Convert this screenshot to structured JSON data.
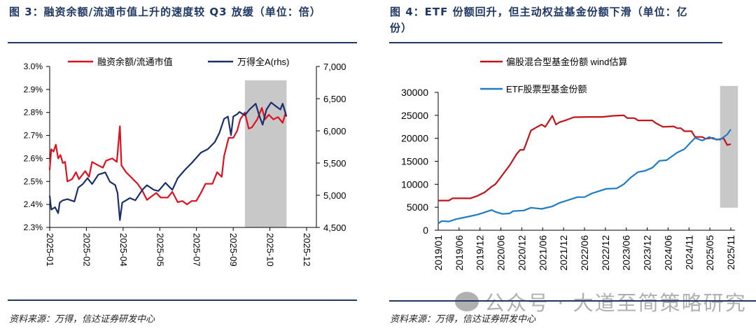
{
  "left": {
    "title": "图 3：融资余额/流通市值上升的速度较 Q3 放缓（单位：倍）",
    "source": "资料来源：万得，信达证券研发中心"
  },
  "right": {
    "title_line1": "图 4：ETF 份额回升，但主动权益基金份额下滑（单位：亿",
    "title_line2": "份）",
    "source": "资料来源：万得，信达证券研发中心"
  },
  "watermark": "公众号 · 大道至简策略研究",
  "chart_data": [
    {
      "type": "line",
      "title": "",
      "xlabel": "",
      "ylabel": "",
      "grid": false,
      "legend": "top",
      "x_ticks": [
        "2025-01",
        "2025-02",
        "2025-04",
        "2025-05",
        "2025-07",
        "2025-09",
        "2025-10",
        "2025-12"
      ],
      "x_range": [
        "2025-01-02",
        "2025-12-01"
      ],
      "y_ticks": [
        "3.0%",
        "2.9%",
        "2.8%",
        "2.7%",
        "2.6%",
        "2.5%",
        "2.4%",
        "2.3%"
      ],
      "ylim": [
        2.3,
        3.0
      ],
      "y2_ticks": [
        "7,000",
        "6,500",
        "6,000",
        "5,500",
        "5,000",
        "4,500"
      ],
      "y2lim": [
        4500,
        7000
      ],
      "shaded": {
        "x": [
          "2025-09-12",
          "2025-11-05"
        ],
        "y_top": 2.94,
        "color": "#c8c8c8"
      },
      "series": [
        {
          "name": "融资余额/流通市值",
          "axis": "left",
          "color": "#e0101e",
          "points": [
            [
              "2025-01-02",
              2.55
            ],
            [
              "2025-01-04",
              2.64
            ],
            [
              "2025-01-07",
              2.63
            ],
            [
              "2025-01-10",
              2.66
            ],
            [
              "2025-01-13",
              2.6
            ],
            [
              "2025-01-16",
              2.615
            ],
            [
              "2025-01-19",
              2.58
            ],
            [
              "2025-01-22",
              2.585
            ],
            [
              "2025-01-25",
              2.5
            ],
            [
              "2025-01-31",
              2.51
            ],
            [
              "2025-02-05",
              2.54
            ],
            [
              "2025-02-09",
              2.51
            ],
            [
              "2025-02-17",
              2.545
            ],
            [
              "2025-02-22",
              2.52
            ],
            [
              "2025-02-26",
              2.585
            ],
            [
              "2025-03-06",
              2.57
            ],
            [
              "2025-03-12",
              2.56
            ],
            [
              "2025-03-16",
              2.59
            ],
            [
              "2025-03-24",
              2.6
            ],
            [
              "2025-03-30",
              2.585
            ],
            [
              "2025-04-03",
              2.74
            ],
            [
              "2025-04-05",
              2.57
            ],
            [
              "2025-04-11",
              2.54
            ],
            [
              "2025-04-20",
              2.51
            ],
            [
              "2025-04-26",
              2.49
            ],
            [
              "2025-05-02",
              2.46
            ],
            [
              "2025-05-08",
              2.42
            ],
            [
              "2025-05-14",
              2.435
            ],
            [
              "2025-05-20",
              2.45
            ],
            [
              "2025-05-26",
              2.43
            ],
            [
              "2025-06-04",
              2.43
            ],
            [
              "2025-06-10",
              2.455
            ],
            [
              "2025-06-17",
              2.41
            ],
            [
              "2025-06-23",
              2.415
            ],
            [
              "2025-06-29",
              2.4
            ],
            [
              "2025-07-05",
              2.415
            ],
            [
              "2025-07-11",
              2.415
            ],
            [
              "2025-07-17",
              2.45
            ],
            [
              "2025-07-23",
              2.49
            ],
            [
              "2025-08-01",
              2.49
            ],
            [
              "2025-08-07",
              2.54
            ],
            [
              "2025-08-13",
              2.52
            ],
            [
              "2025-08-16",
              2.61
            ],
            [
              "2025-08-22",
              2.69
            ],
            [
              "2025-08-28",
              2.69
            ],
            [
              "2025-09-02",
              2.72
            ],
            [
              "2025-09-06",
              2.77
            ],
            [
              "2025-09-12",
              2.8
            ],
            [
              "2025-09-17",
              2.73
            ],
            [
              "2025-09-21",
              2.735
            ],
            [
              "2025-09-28",
              2.77
            ],
            [
              "2025-10-04",
              2.82
            ],
            [
              "2025-10-08",
              2.77
            ],
            [
              "2025-10-13",
              2.79
            ],
            [
              "2025-10-19",
              2.77
            ],
            [
              "2025-10-25",
              2.78
            ],
            [
              "2025-10-31",
              2.755
            ],
            [
              "2025-11-04",
              2.8
            ]
          ]
        },
        {
          "name": "万得全A(rhs)",
          "axis": "right",
          "color": "#1b2f6b",
          "points": [
            [
              "2025-01-02",
              4993
            ],
            [
              "2025-01-04",
              4777
            ],
            [
              "2025-01-09",
              4813
            ],
            [
              "2025-01-13",
              4722
            ],
            [
              "2025-01-15",
              4885
            ],
            [
              "2025-01-19",
              4921
            ],
            [
              "2025-01-25",
              4939
            ],
            [
              "2025-02-03",
              4903
            ],
            [
              "2025-02-08",
              5120
            ],
            [
              "2025-02-14",
              5174
            ],
            [
              "2025-02-20",
              5265
            ],
            [
              "2025-02-26",
              5174
            ],
            [
              "2025-03-06",
              5319
            ],
            [
              "2025-03-15",
              5355
            ],
            [
              "2025-03-21",
              5210
            ],
            [
              "2025-03-28",
              5156
            ],
            [
              "2025-03-31",
              5030
            ],
            [
              "2025-04-03",
              4614
            ],
            [
              "2025-04-06",
              4885
            ],
            [
              "2025-04-16",
              4957
            ],
            [
              "2025-04-23",
              4921
            ],
            [
              "2025-05-02",
              5084
            ],
            [
              "2025-05-08",
              5156
            ],
            [
              "2025-05-17",
              5084
            ],
            [
              "2025-05-23",
              5066
            ],
            [
              "2025-06-01",
              5192
            ],
            [
              "2025-06-10",
              5084
            ],
            [
              "2025-06-17",
              5265
            ],
            [
              "2025-06-26",
              5391
            ],
            [
              "2025-07-05",
              5500
            ],
            [
              "2025-07-17",
              5662
            ],
            [
              "2025-07-26",
              5716
            ],
            [
              "2025-08-04",
              5825
            ],
            [
              "2025-08-10",
              5970
            ],
            [
              "2025-08-16",
              6186
            ],
            [
              "2025-08-21",
              6223
            ],
            [
              "2025-08-25",
              5933
            ],
            [
              "2025-08-28",
              6223
            ],
            [
              "2025-09-02",
              6259
            ],
            [
              "2025-09-05",
              6295
            ],
            [
              "2025-09-12",
              6241
            ],
            [
              "2025-09-18",
              6331
            ],
            [
              "2025-09-26",
              6422
            ],
            [
              "2025-10-01",
              6223
            ],
            [
              "2025-10-05",
              6096
            ],
            [
              "2025-10-10",
              6331
            ],
            [
              "2025-10-16",
              6440
            ],
            [
              "2025-10-22",
              6385
            ],
            [
              "2025-10-28",
              6331
            ],
            [
              "2025-10-31",
              6422
            ],
            [
              "2025-11-05",
              6223
            ]
          ]
        }
      ]
    },
    {
      "type": "line",
      "title": "",
      "xlabel": "",
      "ylabel": "",
      "grid": false,
      "legend": "top",
      "x_ticks": [
        "2019/01",
        "2019/06",
        "2019/12",
        "2020/06",
        "2020/12",
        "2021/06",
        "2021/12",
        "2022/06",
        "2022/12",
        "2023/06",
        "2023/12",
        "2024/06",
        "2024/11",
        "2025/05",
        "2025/11"
      ],
      "x_range": [
        "2019/01",
        "2025/11"
      ],
      "y_ticks": [
        "30000",
        "25000",
        "20000",
        "15000",
        "10000",
        "5000",
        "0"
      ],
      "ylim": [
        0,
        30000
      ],
      "shaded": {
        "x": [
          "2025/08",
          "2026/01"
        ],
        "y": [
          4900,
          31400
        ],
        "color": "#c8c8c8"
      },
      "series": [
        {
          "name": "偏股混合型基金份额 wind估算",
          "color": "#c0151b",
          "points": [
            [
              "2019/01",
              6450
            ],
            [
              "2019/04",
              6450
            ],
            [
              "2019/05",
              6950
            ],
            [
              "2019/10",
              6950
            ],
            [
              "2019/12",
              7470
            ],
            [
              "2020/02",
              8240
            ],
            [
              "2020/04",
              9500
            ],
            [
              "2020/05",
              10000
            ],
            [
              "2020/06",
              11000
            ],
            [
              "2020/09",
              14100
            ],
            [
              "2020/11",
              16600
            ],
            [
              "2020/12",
              17500
            ],
            [
              "2021/01",
              17500
            ],
            [
              "2021/03",
              21700
            ],
            [
              "2021/05",
              22600
            ],
            [
              "2021/06",
              23000
            ],
            [
              "2021/07",
              22500
            ],
            [
              "2021/09",
              24900
            ],
            [
              "2021/10",
              23000
            ],
            [
              "2021/11",
              23500
            ],
            [
              "2022/01",
              24000
            ],
            [
              "2022/03",
              24600
            ],
            [
              "2022/07",
              24650
            ],
            [
              "2022/11",
              24650
            ],
            [
              "2023/02",
              24900
            ],
            [
              "2023/05",
              25000
            ],
            [
              "2023/06",
              24400
            ],
            [
              "2023/08",
              24400
            ],
            [
              "2023/09",
              23900
            ],
            [
              "2024/01",
              23900
            ],
            [
              "2024/02",
              23300
            ],
            [
              "2024/04",
              22500
            ],
            [
              "2024/07",
              22600
            ],
            [
              "2024/08",
              22200
            ],
            [
              "2024/09",
              22200
            ],
            [
              "2024/10",
              21550
            ],
            [
              "2024/12",
              21550
            ],
            [
              "2025/01",
              20300
            ],
            [
              "2025/03",
              20300
            ],
            [
              "2025/04",
              19900
            ],
            [
              "2025/06",
              20100
            ],
            [
              "2025/07",
              19700
            ],
            [
              "2025/09",
              20000
            ],
            [
              "2025/10",
              18550
            ],
            [
              "2025/11",
              18750
            ]
          ]
        },
        {
          "name": "ETF股票型基金份额",
          "color": "#1f7cc4",
          "points": [
            [
              "2019/01",
              1470
            ],
            [
              "2019/02",
              2000
            ],
            [
              "2019/04",
              1900
            ],
            [
              "2019/06",
              2400
            ],
            [
              "2019/09",
              2900
            ],
            [
              "2019/12",
              3400
            ],
            [
              "2020/02",
              3900
            ],
            [
              "2020/04",
              4400
            ],
            [
              "2020/05",
              4000
            ],
            [
              "2020/07",
              3550
            ],
            [
              "2020/09",
              3650
            ],
            [
              "2020/10",
              4150
            ],
            [
              "2021/01",
              4300
            ],
            [
              "2021/03",
              4900
            ],
            [
              "2021/06",
              4650
            ],
            [
              "2021/09",
              5200
            ],
            [
              "2021/11",
              5950
            ],
            [
              "2022/02",
              6700
            ],
            [
              "2022/04",
              7200
            ],
            [
              "2022/06",
              7200
            ],
            [
              "2022/08",
              8000
            ],
            [
              "2022/10",
              8500
            ],
            [
              "2022/12",
              9000
            ],
            [
              "2023/03",
              9100
            ],
            [
              "2023/05",
              10000
            ],
            [
              "2023/07",
              11500
            ],
            [
              "2023/09",
              12650
            ],
            [
              "2023/11",
              12950
            ],
            [
              "2024/01",
              13600
            ],
            [
              "2024/03",
              15100
            ],
            [
              "2024/05",
              15250
            ],
            [
              "2024/08",
              16900
            ],
            [
              "2024/10",
              17650
            ],
            [
              "2024/12",
              19300
            ],
            [
              "2025/01",
              20100
            ],
            [
              "2025/03",
              19500
            ],
            [
              "2025/05",
              20300
            ],
            [
              "2025/06",
              19900
            ],
            [
              "2025/08",
              19700
            ],
            [
              "2025/10",
              20850
            ],
            [
              "2025/11",
              21950
            ]
          ]
        }
      ]
    }
  ]
}
